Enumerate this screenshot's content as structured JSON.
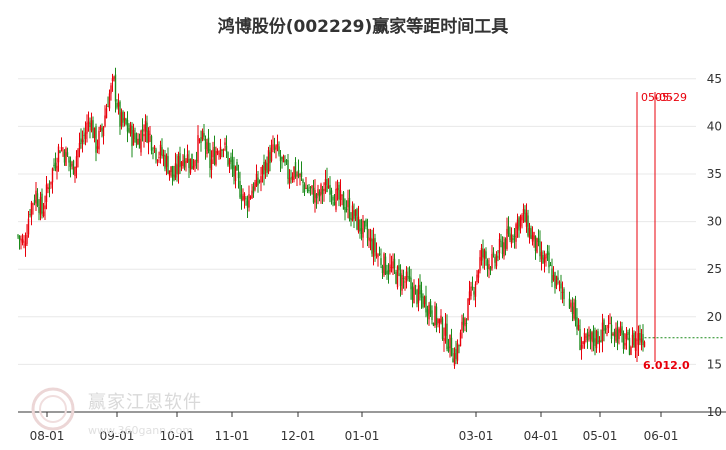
{
  "chart_data": {
    "type": "candlestick",
    "title": "鸿博股份(002229)赢家等距时间工具",
    "yticks": [
      10,
      15,
      20,
      25,
      30,
      35,
      40,
      45
    ],
    "ylim": [
      10,
      47.5
    ],
    "xticks": [
      "08-01",
      "09-01",
      "10-01",
      "11-01",
      "12-01",
      "01-01",
      "03-01",
      "04-01",
      "05-01",
      "06-01"
    ],
    "markers": [
      {
        "label": "05-05",
        "color": "#e8000b"
      },
      {
        "label": "05-29",
        "color": "#e8000b"
      }
    ],
    "price_line": {
      "label": "6.012.0",
      "value": 17.8
    },
    "close_path": [
      [
        0,
        28.5
      ],
      [
        4,
        27.5
      ],
      [
        8,
        31.5
      ],
      [
        12,
        33.0
      ],
      [
        16,
        31.0
      ],
      [
        20,
        33.5
      ],
      [
        24,
        36.0
      ],
      [
        28,
        38.0
      ],
      [
        32,
        37.0
      ],
      [
        36,
        35.5
      ],
      [
        40,
        37.5
      ],
      [
        44,
        39.0
      ],
      [
        48,
        41.0
      ],
      [
        52,
        38.0
      ],
      [
        56,
        39.5
      ],
      [
        60,
        43.0
      ],
      [
        64,
        44.5
      ],
      [
        68,
        40.5
      ],
      [
        72,
        40.0
      ],
      [
        76,
        39.0
      ],
      [
        80,
        38.5
      ],
      [
        84,
        40.0
      ],
      [
        88,
        39.0
      ],
      [
        92,
        37.5
      ],
      [
        96,
        37.0
      ],
      [
        100,
        36.0
      ],
      [
        104,
        34.5
      ],
      [
        108,
        36.5
      ],
      [
        112,
        37.0
      ],
      [
        116,
        36.0
      ],
      [
        120,
        38.0
      ],
      [
        124,
        38.5
      ],
      [
        128,
        36.0
      ],
      [
        132,
        37.5
      ],
      [
        136,
        38.5
      ],
      [
        140,
        36.5
      ],
      [
        144,
        35.0
      ],
      [
        148,
        33.5
      ],
      [
        152,
        32.0
      ],
      [
        156,
        33.5
      ],
      [
        160,
        34.0
      ],
      [
        164,
        35.5
      ],
      [
        168,
        37.0
      ],
      [
        172,
        37.5
      ],
      [
        176,
        36.0
      ],
      [
        180,
        35.0
      ],
      [
        184,
        35.5
      ],
      [
        188,
        34.5
      ],
      [
        192,
        33.5
      ],
      [
        196,
        33.0
      ],
      [
        200,
        32.5
      ],
      [
        204,
        33.5
      ],
      [
        208,
        34.0
      ],
      [
        212,
        32.5
      ],
      [
        216,
        32.0
      ],
      [
        220,
        31.5
      ],
      [
        224,
        30.5
      ],
      [
        228,
        29.5
      ],
      [
        232,
        28.5
      ],
      [
        236,
        27.5
      ],
      [
        240,
        26.5
      ],
      [
        244,
        25.5
      ],
      [
        248,
        25.0
      ],
      [
        252,
        24.5
      ],
      [
        256,
        24.0
      ],
      [
        260,
        23.5
      ],
      [
        264,
        22.5
      ],
      [
        268,
        22.0
      ],
      [
        272,
        21.5
      ],
      [
        276,
        20.5
      ],
      [
        280,
        19.5
      ],
      [
        284,
        18.5
      ],
      [
        288,
        17.0
      ],
      [
        291,
        16.0
      ],
      [
        294,
        17.0
      ],
      [
        297,
        19.5
      ],
      [
        301,
        21.5
      ],
      [
        305,
        24.0
      ],
      [
        309,
        26.5
      ],
      [
        313,
        26.0
      ],
      [
        317,
        25.5
      ],
      [
        321,
        27.0
      ],
      [
        325,
        28.0
      ],
      [
        329,
        28.5
      ],
      [
        333,
        30.0
      ],
      [
        337,
        30.5
      ],
      [
        341,
        29.0
      ],
      [
        345,
        27.5
      ],
      [
        349,
        26.0
      ],
      [
        353,
        25.5
      ],
      [
        357,
        24.0
      ],
      [
        361,
        23.0
      ],
      [
        364,
        22.5
      ],
      [
        368,
        20.5
      ],
      [
        372,
        17.5
      ],
      [
        376,
        17.0
      ],
      [
        380,
        17.5
      ],
      [
        384,
        18.0
      ],
      [
        388,
        18.5
      ],
      [
        392,
        19.0
      ],
      [
        396,
        18.5
      ],
      [
        400,
        17.5
      ],
      [
        404,
        17.0
      ],
      [
        408,
        17.5
      ],
      [
        412,
        18.0
      ],
      [
        415,
        18.0
      ]
    ]
  }
}
